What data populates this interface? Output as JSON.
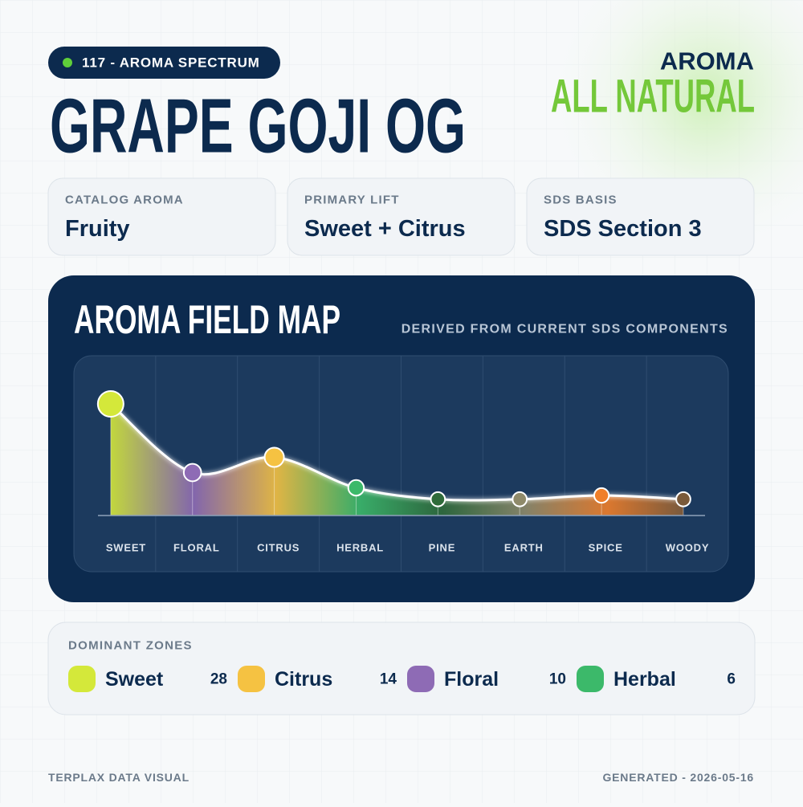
{
  "badge": "117 - AROMA SPECTRUM",
  "title": "GRAPE GOJI OG",
  "aroma": {
    "label": "AROMA",
    "value": "ALL NATURAL"
  },
  "cards": [
    {
      "label": "CATALOG AROMA",
      "value": "Fruity"
    },
    {
      "label": "PRIMARY LIFT",
      "value": "Sweet + Citrus"
    },
    {
      "label": "SDS BASIS",
      "value": "SDS Section 3"
    }
  ],
  "chart_data": {
    "type": "area",
    "title": "AROMA FIELD MAP",
    "subtitle": "DERIVED FROM CURRENT SDS COMPONENTS",
    "categories": [
      "SWEET",
      "FLORAL",
      "CITRUS",
      "HERBAL",
      "PINE",
      "EARTH",
      "SPICE",
      "WOODY"
    ],
    "values": [
      28,
      10,
      14,
      6,
      3,
      3,
      4,
      3
    ],
    "colors": [
      "#d4e83a",
      "#8e6bb5",
      "#f5c242",
      "#3cb96a",
      "#2f6b3a",
      "#8f8a6a",
      "#f07f2a",
      "#7a5a3a"
    ]
  },
  "dominant_zones": {
    "title": "DOMINANT ZONES",
    "items": [
      {
        "name": "Sweet",
        "value": 28,
        "color": "#d4e83a"
      },
      {
        "name": "Citrus",
        "value": 14,
        "color": "#f5c242"
      },
      {
        "name": "Floral",
        "value": 10,
        "color": "#8e6bb5"
      },
      {
        "name": "Herbal",
        "value": 6,
        "color": "#3cb96a"
      }
    ]
  },
  "footer": {
    "left": "TERPLAX DATA VISUAL",
    "right": "GENERATED - 2026-05-16"
  }
}
